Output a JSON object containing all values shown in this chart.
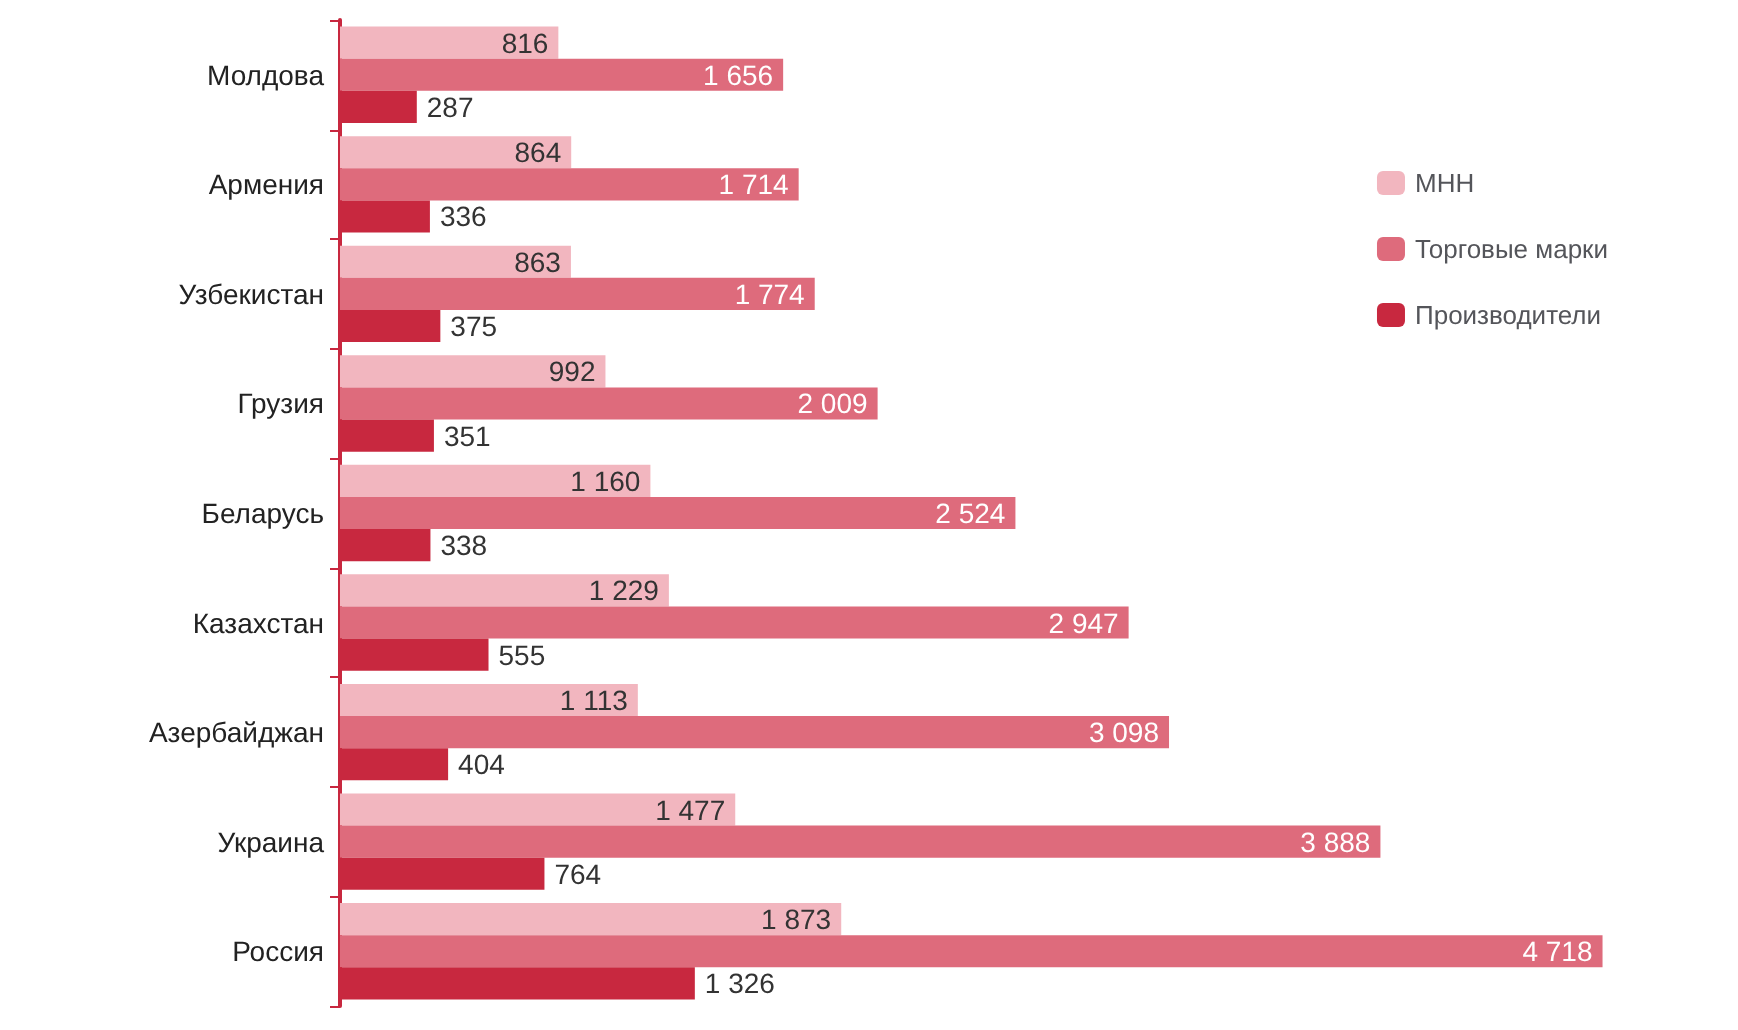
{
  "chart_data": {
    "type": "bar",
    "orientation": "horizontal",
    "categories": [
      "Молдова",
      "Армения",
      "Узбекистан",
      "Грузия",
      "Беларусь",
      "Казахстан",
      "Азербайджан",
      "Украина",
      "Россия"
    ],
    "series": [
      {
        "name": "МНН",
        "color": "#f2b6bf",
        "values": [
          816,
          864,
          863,
          992,
          1160,
          1229,
          1113,
          1477,
          1873
        ],
        "value_labels": [
          "816",
          "864",
          "863",
          "992",
          "1 160",
          "1 229",
          "1 113",
          "1 477",
          "1 873"
        ]
      },
      {
        "name": "Торговые марки",
        "color": "#de6b7c",
        "values": [
          1656,
          1714,
          1774,
          2009,
          2524,
          2947,
          3098,
          3888,
          4718
        ],
        "value_labels": [
          "1 656",
          "1 714",
          "1 774",
          "2 009",
          "2 524",
          "2 947",
          "3 098",
          "3 888",
          "4 718"
        ]
      },
      {
        "name": "Производители",
        "color": "#c8283f",
        "values": [
          287,
          336,
          375,
          351,
          338,
          555,
          404,
          764,
          1326
        ],
        "value_labels": [
          "287",
          "336",
          "375",
          "351",
          "338",
          "555",
          "404",
          "764",
          "1 326"
        ]
      }
    ],
    "legend": "right"
  }
}
